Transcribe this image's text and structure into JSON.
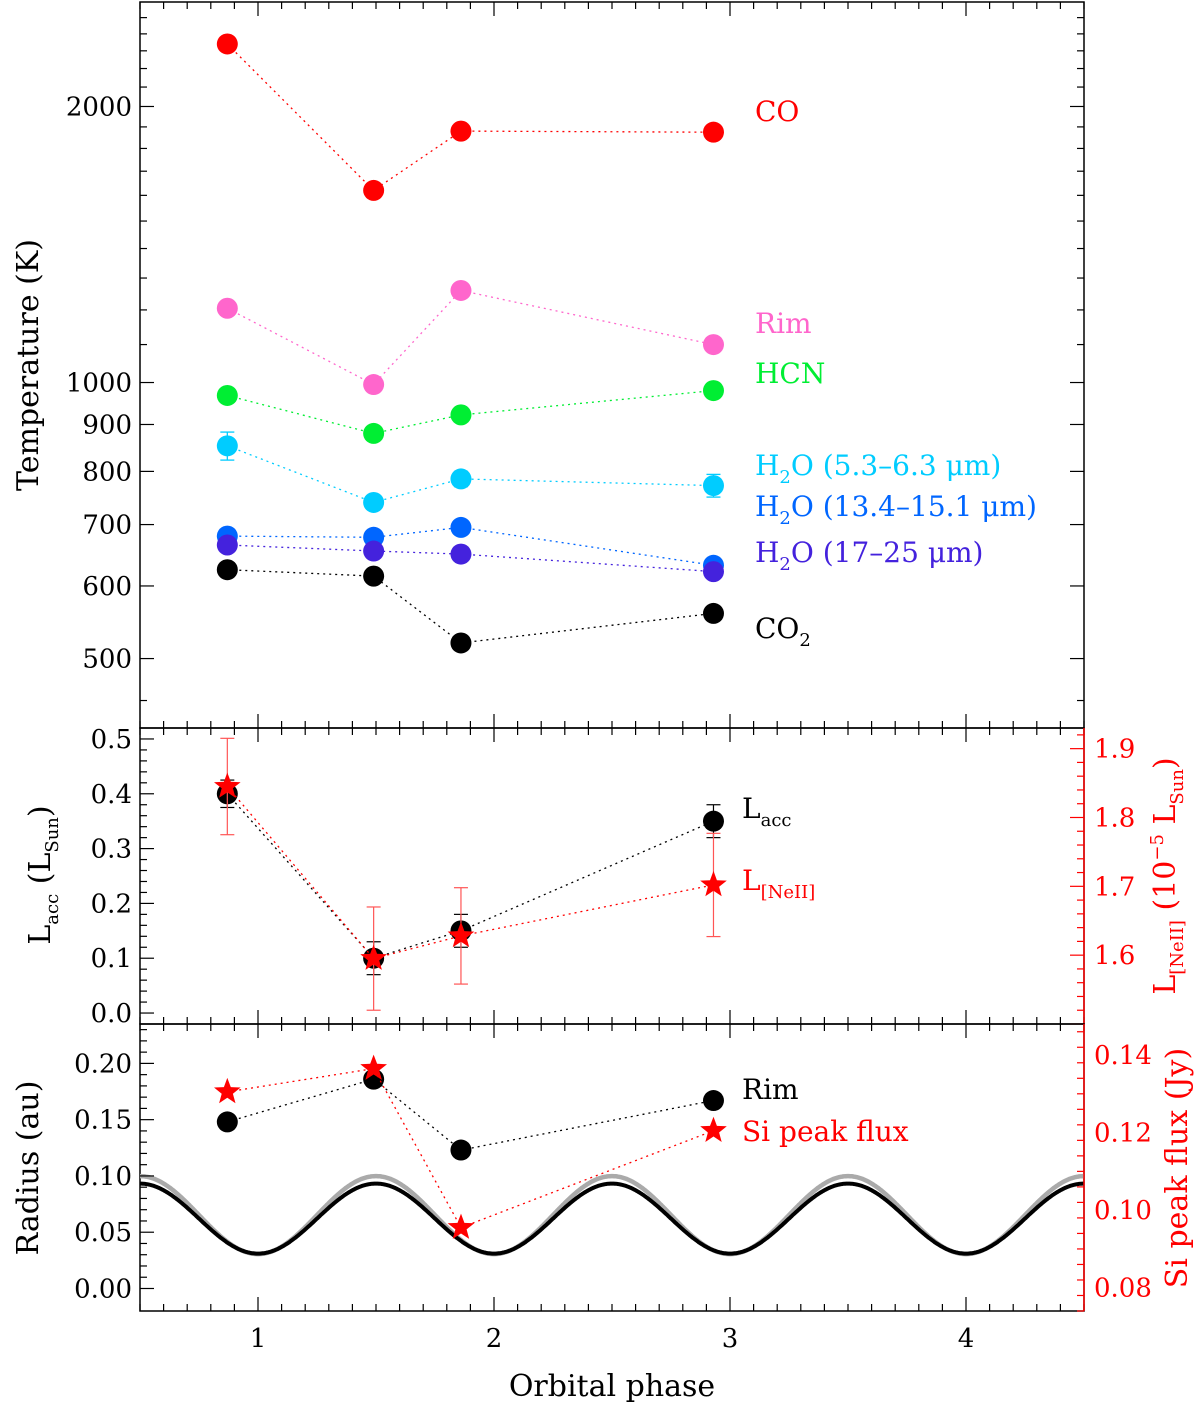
{
  "chart_data": [
    {
      "type": "scatter",
      "panel": "temperature",
      "ylabel": "Temperature (K)",
      "y_scale": "log",
      "ylim": [
        420,
        2600
      ],
      "xlim": [
        0.5,
        4.5
      ],
      "yticks": [
        500,
        600,
        700,
        800,
        900,
        1000,
        2000
      ],
      "x": [
        0.87,
        1.49,
        1.86,
        2.93
      ],
      "series": [
        {
          "name": "CO",
          "color": "#ff0000",
          "values": [
            2340,
            1620,
            1880,
            1875
          ],
          "errors": [
            0,
            0,
            0,
            0
          ]
        },
        {
          "name": "Rim",
          "color": "#ff66cc",
          "values": [
            1205,
            995,
            1260,
            1100
          ],
          "errors": [
            0,
            0,
            0,
            0
          ]
        },
        {
          "name": "HCN",
          "color": "#00ee33",
          "values": [
            968,
            880,
            922,
            980
          ],
          "errors": [
            12,
            10,
            12,
            18
          ]
        },
        {
          "name": "H2O (5.3–6.3 μm)",
          "color": "#00ccff",
          "values": [
            853,
            740,
            785,
            772
          ],
          "errors": [
            30,
            12,
            15,
            22
          ]
        },
        {
          "name": "H2O (13.4–15.1 μm)",
          "color": "#0066ff",
          "values": [
            680,
            678,
            695,
            632
          ],
          "errors": [
            8,
            8,
            8,
            6
          ]
        },
        {
          "name": "H2O (17–25 μm)",
          "color": "#4422dd",
          "values": [
            665,
            655,
            650,
            622
          ],
          "errors": [
            8,
            8,
            8,
            6
          ]
        },
        {
          "name": "CO2",
          "color": "#000000",
          "values": [
            625,
            615,
            520,
            560
          ],
          "errors": [
            0,
            0,
            0,
            0
          ]
        }
      ],
      "labels": [
        {
          "text": "CO",
          "color": "#ff0000"
        },
        {
          "text": "Rim",
          "color": "#ff66cc"
        },
        {
          "text": "HCN",
          "color": "#00ee33"
        },
        {
          "text": "H",
          "sub": "2",
          "rest": "O (5.3–6.3 μm)",
          "color": "#00ccff"
        },
        {
          "text": "H",
          "sub": "2",
          "rest": "O (13.4–15.1 μm)",
          "color": "#0066ff"
        },
        {
          "text": "H",
          "sub": "2",
          "rest": "O (17–25 μm)",
          "color": "#4422dd"
        },
        {
          "text": "CO",
          "sub": "2",
          "rest": "",
          "color": "#000000"
        }
      ]
    },
    {
      "type": "scatter",
      "panel": "luminosity",
      "ylabel": {
        "main": "L",
        "sub": "acc",
        "rest_open": " (L",
        "sub2": "Sun",
        "rest_close": ")"
      },
      "ylim": [
        -0.02,
        0.52
      ],
      "yticks": [
        0.0,
        0.1,
        0.2,
        0.3,
        0.4,
        0.5
      ],
      "y2label": {
        "main": "L",
        "sub": "[NeII]",
        "rest": " (10",
        "sup": "−5",
        "rest2": " L",
        "sub2": "Sun",
        "rest3": ")"
      },
      "y2lim": [
        1.5,
        1.93
      ],
      "y2ticks": [
        1.6,
        1.7,
        1.8,
        1.9
      ],
      "x": [
        0.87,
        1.49,
        1.86,
        2.93
      ],
      "series": [
        {
          "name": "L_acc",
          "axis": "left",
          "marker": "circle",
          "color": "#000000",
          "values": [
            0.4,
            0.1,
            0.15,
            0.35
          ],
          "errors": [
            0.025,
            0.03,
            0.03,
            0.03
          ]
        },
        {
          "name": "L_[NeII]",
          "axis": "right",
          "marker": "star",
          "color": "#ff0000",
          "values": [
            1.845,
            1.595,
            1.628,
            1.702
          ],
          "errors": [
            0.07,
            0.075,
            0.07,
            0.075
          ]
        }
      ],
      "labels": [
        {
          "text": "L",
          "sub": "acc",
          "color": "#000000"
        },
        {
          "text": "L",
          "sub": "[NeII]",
          "color": "#ff0000"
        }
      ]
    },
    {
      "type": "scatter",
      "panel": "radius",
      "ylabel": "Radius (au)",
      "ylim": [
        -0.02,
        0.235
      ],
      "yticks": [
        0.0,
        0.05,
        0.1,
        0.15,
        0.2
      ],
      "y2label": "Si peak flux (Jy)",
      "y2lim": [
        0.074,
        0.148
      ],
      "y2ticks": [
        0.08,
        0.1,
        0.12,
        0.14
      ],
      "xlabel": "Orbital phase",
      "xticks": [
        1,
        2,
        3,
        4
      ],
      "x": [
        0.87,
        1.49,
        1.86,
        2.93
      ],
      "series": [
        {
          "name": "Rim",
          "axis": "left",
          "marker": "circle",
          "color": "#000000",
          "values": [
            0.148,
            0.186,
            0.123,
            0.167
          ]
        },
        {
          "name": "Si peak flux",
          "axis": "right",
          "marker": "star",
          "color": "#ff0000",
          "values": [
            0.1305,
            0.1365,
            0.0955,
            0.1205
          ]
        }
      ],
      "orbit_curves": [
        {
          "color": "#000000",
          "a": 0.07,
          "e": 0.57
        },
        {
          "color": "#aaaaaa",
          "a": 0.074,
          "e": 0.6
        }
      ],
      "labels": [
        {
          "text": "Rim",
          "color": "#000000"
        },
        {
          "text": "Si peak flux",
          "color": "#ff0000"
        }
      ]
    }
  ]
}
